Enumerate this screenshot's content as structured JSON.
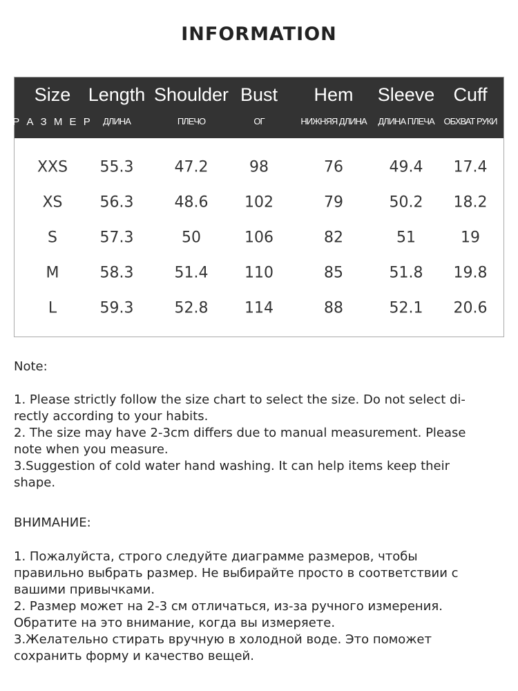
{
  "title": "INFORMATION",
  "table": {
    "headers": [
      {
        "en": "Size",
        "ru": "Р А З М Е Р"
      },
      {
        "en": "Length",
        "ru": "ДЛИНА"
      },
      {
        "en": "Shoulder",
        "ru": "ПЛЕЧО"
      },
      {
        "en": "Bust",
        "ru": "ОГ"
      },
      {
        "en": "Hem",
        "ru": "НИЖНЯЯ ДЛИНА"
      },
      {
        "en": "Sleeve",
        "ru": "ДЛИНА ПЛЕЧА"
      },
      {
        "en": "Cuff",
        "ru": "ОБХВАТ РУКИ"
      }
    ],
    "rows": [
      [
        "XXS",
        "55.3",
        "47.2",
        "98",
        "76",
        "49.4",
        "17.4"
      ],
      [
        "XS",
        "56.3",
        "48.6",
        "102",
        "79",
        "50.2",
        "18.2"
      ],
      [
        "S",
        "57.3",
        "50",
        "106",
        "82",
        "51",
        "19"
      ],
      [
        "M",
        "58.3",
        "51.4",
        "110",
        "85",
        "51.8",
        "19.8"
      ],
      [
        "L",
        "59.3",
        "52.8",
        "114",
        "88",
        "52.1",
        "20.6"
      ]
    ],
    "header_bg": "#333333"
  },
  "notes_en": {
    "heading": "Note:",
    "lines": [
      "1. Please strictly follow the size chart  to select the size. Do not select di-",
      "rectly according to your habits.",
      "2. The size may have 2-3cm differs due to manual measurement. Please",
      "note when you measure.",
      "3.Suggestion of cold water hand washing. It can help items keep their",
      "shape."
    ]
  },
  "notes_ru": {
    "heading": "ВНИМАНИЕ:",
    "lines": [
      "1. Пожалуйста, строго следуйте диаграмме размеров, чтобы",
      "правильно выбрать размер. Не выбирайте просто в соответствии с",
      "вашими привычками.",
      "2. Размер может на 2-3 см отличаться, из-за ручного измерения.",
      "Обратите на это внимание, когда вы измеряете.",
      "3.Желательно стирать вручную в холодной воде. Это поможет",
      "сохранить форму и качество вещей."
    ]
  }
}
